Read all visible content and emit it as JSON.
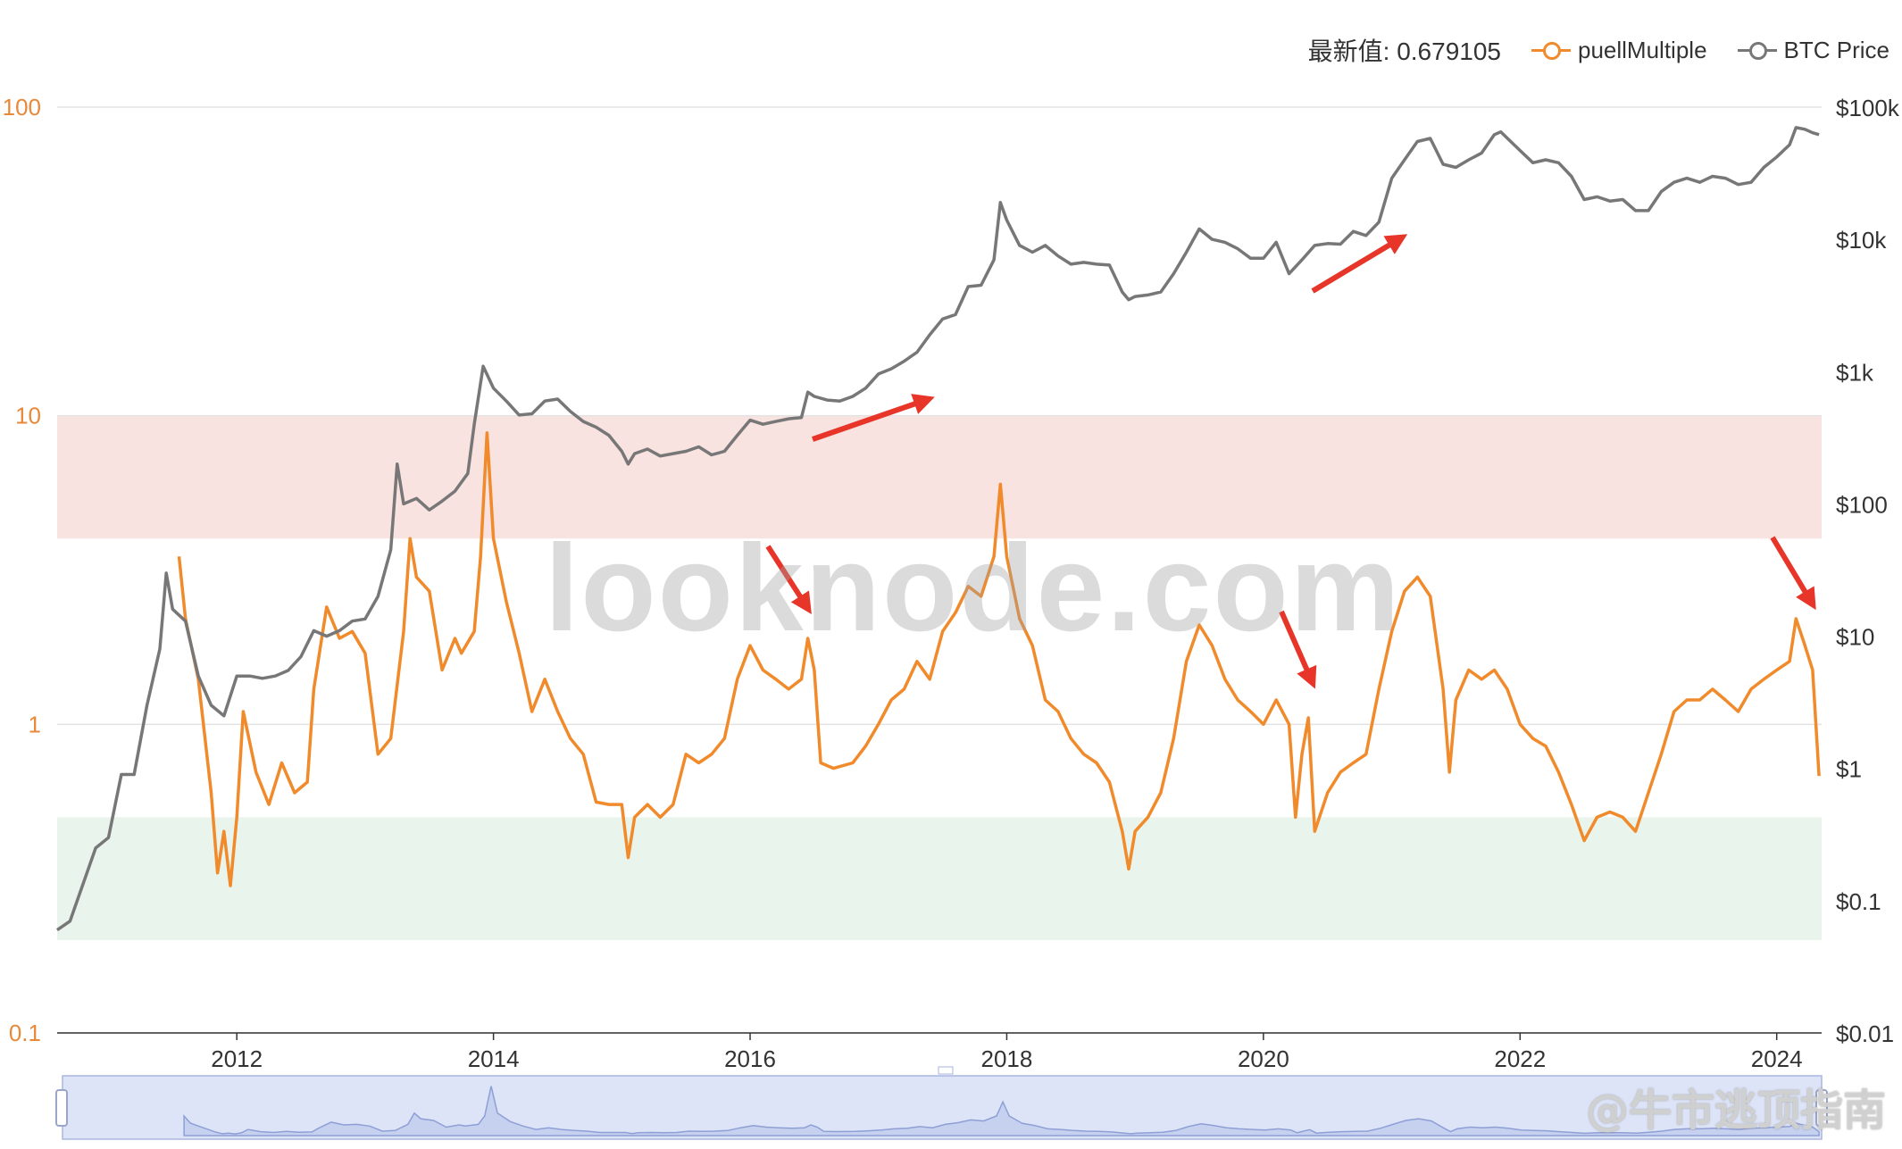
{
  "legend": {
    "latest_label": "最新值: 0.679105",
    "items": [
      {
        "label": "puellMultiple",
        "color": "#f08a2b"
      },
      {
        "label": "BTC Price",
        "color": "#777777"
      }
    ]
  },
  "watermarks": {
    "main": "looknode.com",
    "source": "@牛市逃顶指南"
  },
  "chart_data": {
    "type": "line",
    "left_axis": {
      "scale": "log",
      "range": [
        0.1,
        100
      ],
      "ticks": [
        "0.1",
        "1",
        "10",
        "100"
      ]
    },
    "right_axis": {
      "scale": "log",
      "range": [
        0.01,
        100000
      ],
      "ticks": [
        "$0.01",
        "$0.1",
        "$1",
        "$10",
        "$100",
        "$1k",
        "$10k",
        "$100k"
      ]
    },
    "x_axis": {
      "range": [
        2010.6,
        2024.35
      ],
      "ticks": [
        "2012",
        "2014",
        "2016",
        "2018",
        "2020",
        "2022",
        "2024"
      ]
    },
    "bands": [
      {
        "from": 4,
        "to": 10,
        "color": "#f9e3e1"
      },
      {
        "from": 0.2,
        "to": 0.5,
        "color": "#e9f5ec"
      }
    ],
    "series": [
      {
        "name": "puellMultiple",
        "axis": "left",
        "color": "#f08a2b",
        "points": [
          [
            2011.55,
            3.5
          ],
          [
            2011.6,
            2.2
          ],
          [
            2011.7,
            1.4
          ],
          [
            2011.8,
            0.6
          ],
          [
            2011.85,
            0.33
          ],
          [
            2011.9,
            0.45
          ],
          [
            2011.95,
            0.3
          ],
          [
            2012.0,
            0.5
          ],
          [
            2012.05,
            1.1
          ],
          [
            2012.15,
            0.7
          ],
          [
            2012.25,
            0.55
          ],
          [
            2012.35,
            0.75
          ],
          [
            2012.45,
            0.6
          ],
          [
            2012.55,
            0.65
          ],
          [
            2012.6,
            1.3
          ],
          [
            2012.7,
            2.4
          ],
          [
            2012.8,
            1.9
          ],
          [
            2012.9,
            2.0
          ],
          [
            2013.0,
            1.7
          ],
          [
            2013.1,
            0.8
          ],
          [
            2013.2,
            0.9
          ],
          [
            2013.3,
            2.0
          ],
          [
            2013.35,
            4.0
          ],
          [
            2013.4,
            3.0
          ],
          [
            2013.5,
            2.7
          ],
          [
            2013.6,
            1.5
          ],
          [
            2013.7,
            1.9
          ],
          [
            2013.75,
            1.7
          ],
          [
            2013.85,
            2.0
          ],
          [
            2013.9,
            3.5
          ],
          [
            2013.95,
            8.8
          ],
          [
            2014.0,
            4.0
          ],
          [
            2014.1,
            2.5
          ],
          [
            2014.2,
            1.7
          ],
          [
            2014.3,
            1.1
          ],
          [
            2014.4,
            1.4
          ],
          [
            2014.5,
            1.1
          ],
          [
            2014.6,
            0.9
          ],
          [
            2014.7,
            0.8
          ],
          [
            2014.8,
            0.56
          ],
          [
            2014.9,
            0.55
          ],
          [
            2015.0,
            0.55
          ],
          [
            2015.05,
            0.37
          ],
          [
            2015.1,
            0.5
          ],
          [
            2015.2,
            0.55
          ],
          [
            2015.3,
            0.5
          ],
          [
            2015.4,
            0.55
          ],
          [
            2015.5,
            0.8
          ],
          [
            2015.6,
            0.75
          ],
          [
            2015.7,
            0.8
          ],
          [
            2015.8,
            0.9
          ],
          [
            2015.9,
            1.4
          ],
          [
            2016.0,
            1.8
          ],
          [
            2016.1,
            1.5
          ],
          [
            2016.2,
            1.4
          ],
          [
            2016.3,
            1.3
          ],
          [
            2016.4,
            1.4
          ],
          [
            2016.45,
            1.9
          ],
          [
            2016.5,
            1.5
          ],
          [
            2016.55,
            0.75
          ],
          [
            2016.65,
            0.72
          ],
          [
            2016.8,
            0.75
          ],
          [
            2016.9,
            0.85
          ],
          [
            2017.0,
            1.0
          ],
          [
            2017.1,
            1.2
          ],
          [
            2017.2,
            1.3
          ],
          [
            2017.3,
            1.6
          ],
          [
            2017.4,
            1.4
          ],
          [
            2017.5,
            2.0
          ],
          [
            2017.6,
            2.3
          ],
          [
            2017.7,
            2.8
          ],
          [
            2017.8,
            2.6
          ],
          [
            2017.9,
            3.5
          ],
          [
            2017.95,
            6.0
          ],
          [
            2018.0,
            3.5
          ],
          [
            2018.1,
            2.2
          ],
          [
            2018.2,
            1.8
          ],
          [
            2018.3,
            1.2
          ],
          [
            2018.4,
            1.1
          ],
          [
            2018.5,
            0.9
          ],
          [
            2018.6,
            0.8
          ],
          [
            2018.7,
            0.75
          ],
          [
            2018.8,
            0.65
          ],
          [
            2018.9,
            0.45
          ],
          [
            2018.95,
            0.34
          ],
          [
            2019.0,
            0.45
          ],
          [
            2019.1,
            0.5
          ],
          [
            2019.2,
            0.6
          ],
          [
            2019.3,
            0.9
          ],
          [
            2019.4,
            1.6
          ],
          [
            2019.5,
            2.1
          ],
          [
            2019.6,
            1.8
          ],
          [
            2019.7,
            1.4
          ],
          [
            2019.8,
            1.2
          ],
          [
            2019.9,
            1.1
          ],
          [
            2020.0,
            1.0
          ],
          [
            2020.1,
            1.2
          ],
          [
            2020.2,
            1.0
          ],
          [
            2020.25,
            0.5
          ],
          [
            2020.3,
            0.8
          ],
          [
            2020.35,
            1.05
          ],
          [
            2020.4,
            0.45
          ],
          [
            2020.5,
            0.6
          ],
          [
            2020.6,
            0.7
          ],
          [
            2020.7,
            0.75
          ],
          [
            2020.8,
            0.8
          ],
          [
            2020.9,
            1.3
          ],
          [
            2021.0,
            2.0
          ],
          [
            2021.1,
            2.7
          ],
          [
            2021.2,
            3.0
          ],
          [
            2021.3,
            2.6
          ],
          [
            2021.4,
            1.3
          ],
          [
            2021.45,
            0.7
          ],
          [
            2021.5,
            1.2
          ],
          [
            2021.6,
            1.5
          ],
          [
            2021.7,
            1.4
          ],
          [
            2021.8,
            1.5
          ],
          [
            2021.9,
            1.3
          ],
          [
            2022.0,
            1.0
          ],
          [
            2022.1,
            0.9
          ],
          [
            2022.2,
            0.85
          ],
          [
            2022.3,
            0.7
          ],
          [
            2022.4,
            0.55
          ],
          [
            2022.5,
            0.42
          ],
          [
            2022.6,
            0.5
          ],
          [
            2022.7,
            0.52
          ],
          [
            2022.8,
            0.5
          ],
          [
            2022.9,
            0.45
          ],
          [
            2023.0,
            0.6
          ],
          [
            2023.1,
            0.8
          ],
          [
            2023.2,
            1.1
          ],
          [
            2023.3,
            1.2
          ],
          [
            2023.4,
            1.2
          ],
          [
            2023.5,
            1.3
          ],
          [
            2023.6,
            1.2
          ],
          [
            2023.7,
            1.1
          ],
          [
            2023.8,
            1.3
          ],
          [
            2023.9,
            1.4
          ],
          [
            2024.0,
            1.5
          ],
          [
            2024.1,
            1.6
          ],
          [
            2024.15,
            2.2
          ],
          [
            2024.22,
            1.8
          ],
          [
            2024.28,
            1.5
          ],
          [
            2024.33,
            0.68
          ]
        ]
      },
      {
        "name": "BTC Price",
        "axis": "right",
        "color": "#777777",
        "points": [
          [
            2010.6,
            0.06
          ],
          [
            2010.7,
            0.07
          ],
          [
            2010.9,
            0.25
          ],
          [
            2011.0,
            0.3
          ],
          [
            2011.1,
            0.9
          ],
          [
            2011.2,
            0.9
          ],
          [
            2011.3,
            3
          ],
          [
            2011.4,
            8
          ],
          [
            2011.45,
            30
          ],
          [
            2011.5,
            16
          ],
          [
            2011.6,
            13
          ],
          [
            2011.7,
            5
          ],
          [
            2011.8,
            3
          ],
          [
            2011.9,
            2.5
          ],
          [
            2012.0,
            5
          ],
          [
            2012.1,
            5
          ],
          [
            2012.2,
            4.8
          ],
          [
            2012.3,
            5
          ],
          [
            2012.4,
            5.5
          ],
          [
            2012.5,
            7
          ],
          [
            2012.6,
            11
          ],
          [
            2012.7,
            10
          ],
          [
            2012.8,
            11
          ],
          [
            2012.9,
            13
          ],
          [
            2013.0,
            13.5
          ],
          [
            2013.1,
            20
          ],
          [
            2013.2,
            45
          ],
          [
            2013.25,
            200
          ],
          [
            2013.3,
            100
          ],
          [
            2013.4,
            110
          ],
          [
            2013.5,
            90
          ],
          [
            2013.6,
            105
          ],
          [
            2013.7,
            125
          ],
          [
            2013.8,
            170
          ],
          [
            2013.85,
            400
          ],
          [
            2013.92,
            1100
          ],
          [
            2014.0,
            750
          ],
          [
            2014.1,
            600
          ],
          [
            2014.2,
            470
          ],
          [
            2014.3,
            480
          ],
          [
            2014.4,
            600
          ],
          [
            2014.5,
            620
          ],
          [
            2014.6,
            500
          ],
          [
            2014.7,
            420
          ],
          [
            2014.8,
            380
          ],
          [
            2014.9,
            330
          ],
          [
            2015.0,
            250
          ],
          [
            2015.05,
            200
          ],
          [
            2015.1,
            240
          ],
          [
            2015.2,
            260
          ],
          [
            2015.3,
            230
          ],
          [
            2015.4,
            240
          ],
          [
            2015.5,
            250
          ],
          [
            2015.6,
            270
          ],
          [
            2015.7,
            235
          ],
          [
            2015.8,
            250
          ],
          [
            2015.9,
            330
          ],
          [
            2016.0,
            430
          ],
          [
            2016.1,
            400
          ],
          [
            2016.2,
            420
          ],
          [
            2016.3,
            440
          ],
          [
            2016.4,
            450
          ],
          [
            2016.45,
            700
          ],
          [
            2016.5,
            650
          ],
          [
            2016.6,
            610
          ],
          [
            2016.7,
            600
          ],
          [
            2016.8,
            650
          ],
          [
            2016.9,
            750
          ],
          [
            2017.0,
            960
          ],
          [
            2017.1,
            1050
          ],
          [
            2017.2,
            1200
          ],
          [
            2017.3,
            1400
          ],
          [
            2017.4,
            1900
          ],
          [
            2017.5,
            2500
          ],
          [
            2017.6,
            2700
          ],
          [
            2017.7,
            4400
          ],
          [
            2017.8,
            4500
          ],
          [
            2017.9,
            7000
          ],
          [
            2017.95,
            19000
          ],
          [
            2018.0,
            14000
          ],
          [
            2018.1,
            9000
          ],
          [
            2018.2,
            8000
          ],
          [
            2018.3,
            9000
          ],
          [
            2018.4,
            7500
          ],
          [
            2018.5,
            6500
          ],
          [
            2018.6,
            6700
          ],
          [
            2018.7,
            6500
          ],
          [
            2018.8,
            6400
          ],
          [
            2018.9,
            4000
          ],
          [
            2018.95,
            3500
          ],
          [
            2019.0,
            3700
          ],
          [
            2019.1,
            3800
          ],
          [
            2019.2,
            4000
          ],
          [
            2019.3,
            5500
          ],
          [
            2019.4,
            8000
          ],
          [
            2019.5,
            12000
          ],
          [
            2019.6,
            10000
          ],
          [
            2019.7,
            9500
          ],
          [
            2019.8,
            8500
          ],
          [
            2019.9,
            7200
          ],
          [
            2020.0,
            7200
          ],
          [
            2020.1,
            9500
          ],
          [
            2020.2,
            5500
          ],
          [
            2020.3,
            7000
          ],
          [
            2020.4,
            9000
          ],
          [
            2020.5,
            9300
          ],
          [
            2020.6,
            9200
          ],
          [
            2020.7,
            11500
          ],
          [
            2020.8,
            10700
          ],
          [
            2020.9,
            13500
          ],
          [
            2021.0,
            29000
          ],
          [
            2021.1,
            40000
          ],
          [
            2021.2,
            55000
          ],
          [
            2021.3,
            58000
          ],
          [
            2021.4,
            37000
          ],
          [
            2021.5,
            35000
          ],
          [
            2021.6,
            40000
          ],
          [
            2021.7,
            45000
          ],
          [
            2021.8,
            62000
          ],
          [
            2021.85,
            65000
          ],
          [
            2022.0,
            47000
          ],
          [
            2022.1,
            38000
          ],
          [
            2022.2,
            40000
          ],
          [
            2022.3,
            38000
          ],
          [
            2022.4,
            30000
          ],
          [
            2022.5,
            20000
          ],
          [
            2022.6,
            21000
          ],
          [
            2022.7,
            19500
          ],
          [
            2022.8,
            20000
          ],
          [
            2022.9,
            16500
          ],
          [
            2023.0,
            16500
          ],
          [
            2023.1,
            23000
          ],
          [
            2023.2,
            27000
          ],
          [
            2023.3,
            29000
          ],
          [
            2023.4,
            27000
          ],
          [
            2023.5,
            30000
          ],
          [
            2023.6,
            29000
          ],
          [
            2023.7,
            26000
          ],
          [
            2023.8,
            27000
          ],
          [
            2023.9,
            35000
          ],
          [
            2024.0,
            42000
          ],
          [
            2024.1,
            52000
          ],
          [
            2024.15,
            70000
          ],
          [
            2024.22,
            68000
          ],
          [
            2024.28,
            64000
          ],
          [
            2024.33,
            62000
          ]
        ]
      }
    ],
    "navigator": {
      "x_range": [
        2010.6,
        2024.35
      ]
    }
  }
}
